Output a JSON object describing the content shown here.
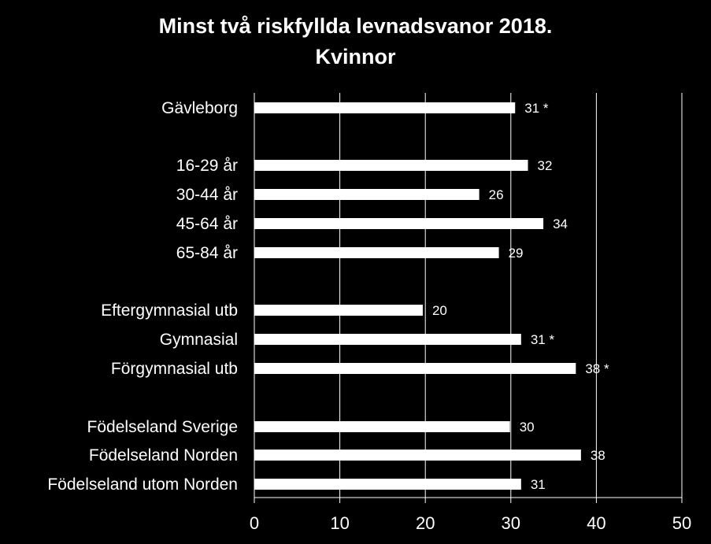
{
  "chart_data": {
    "type": "bar",
    "orientation": "horizontal",
    "title": "Minst två riskfyllda levnadsvanor 2018.",
    "subtitle": "Kvinnor",
    "categories": [
      "Gävleborg",
      "16-29 år",
      "30-44 år",
      "45-64 år",
      "65-84 år",
      "Eftergymnasial utb",
      "Gymnasial",
      "Förgymnasial utb",
      "Födelseland Sverige",
      "Födelseland Norden",
      "Födelseland utom Norden"
    ],
    "values": [
      30.5,
      32,
      26.3,
      33.8,
      28.6,
      19.7,
      31.2,
      37.6,
      29.9,
      38.2,
      31.2
    ],
    "data_labels": [
      "31 *",
      "32",
      "26",
      "34",
      "29",
      "20",
      "31 *",
      "38 *",
      "30",
      "38",
      "31"
    ],
    "xlim": [
      0,
      50
    ],
    "xticks": [
      "0",
      "10",
      "20",
      "30",
      "40",
      "50"
    ],
    "grid": true,
    "bar_color": "#ffffff",
    "background_color": "#000000"
  }
}
